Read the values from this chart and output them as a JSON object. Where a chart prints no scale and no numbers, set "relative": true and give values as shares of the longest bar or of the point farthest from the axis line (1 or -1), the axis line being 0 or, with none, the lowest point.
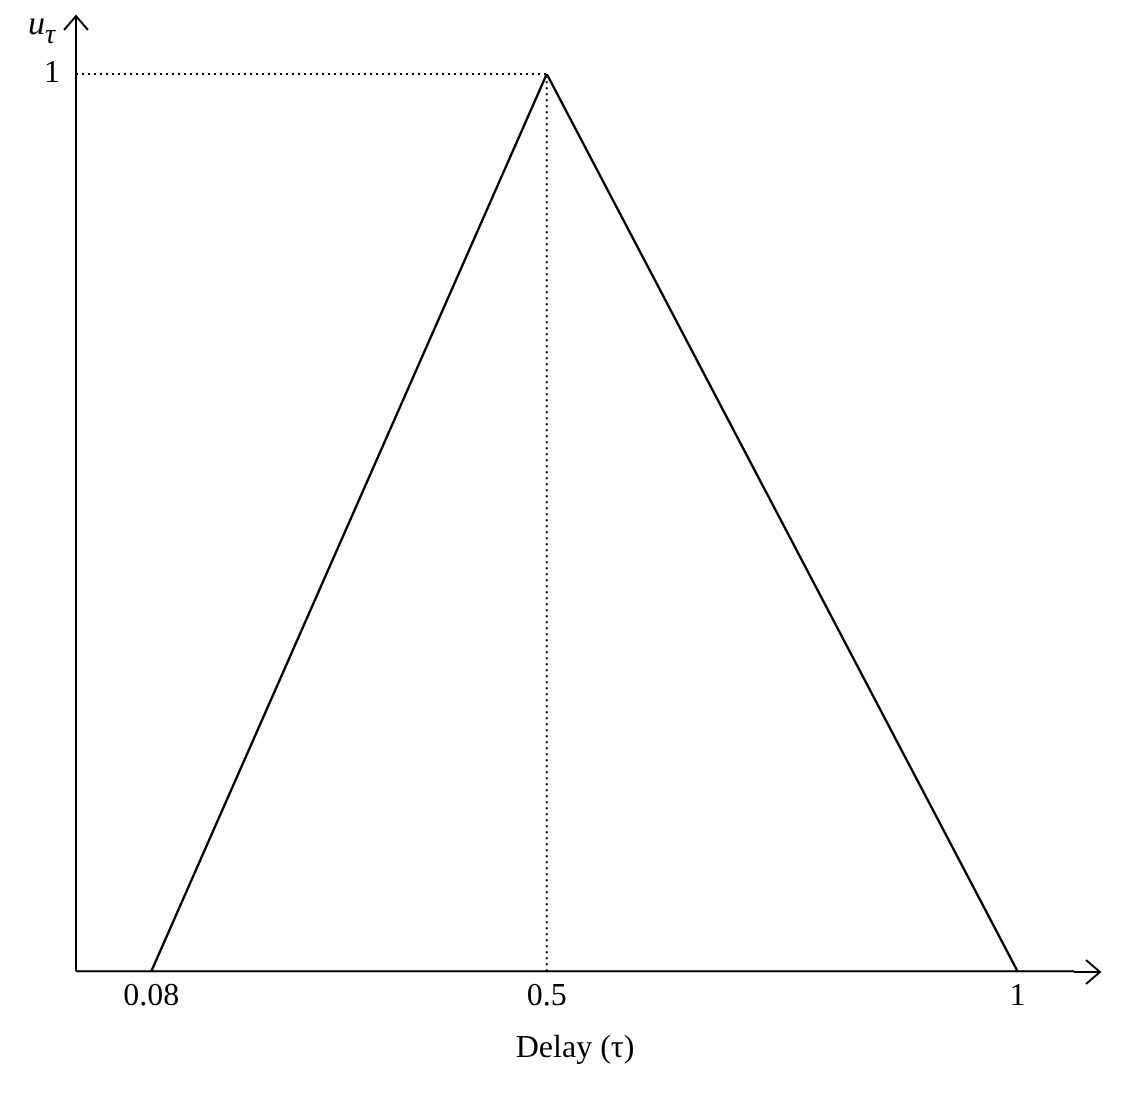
{
  "chart_data": {
    "type": "line",
    "xlabel": "Delay (τ)",
    "ylabel": "u$_{τ}$",
    "relative": true,
    "x": [
      0.08,
      0.5,
      1
    ],
    "values": [
      0,
      1,
      0
    ],
    "color": "#000000",
    "xlim": [
      0,
      1.06
    ],
    "xticks": [
      0.08,
      0.5,
      1
    ],
    "ref_lines": [
      {
        "axis": "x",
        "value": 0.5,
        "line_style": "dotted"
      },
      {
        "axis": "y",
        "value": 1,
        "label": "1",
        "line_style": "dotted"
      }
    ],
    "grid": false,
    "legend": false,
    "marker": "none",
    "line_style": "solid"
  }
}
